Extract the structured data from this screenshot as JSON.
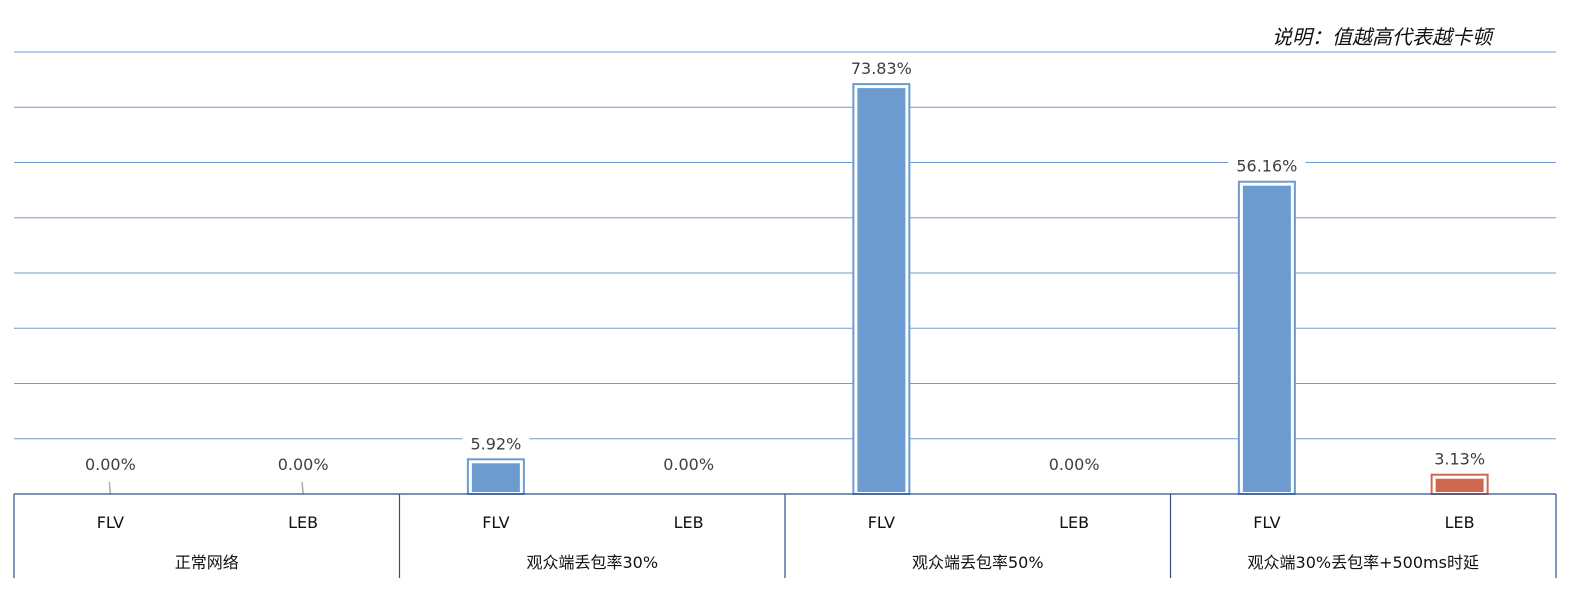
{
  "chart_data": {
    "type": "bar",
    "note": "说明：值越高代表越卡顿",
    "groups": [
      "正常网络",
      "观众端丢包率30%",
      "观众端丢包率50%",
      "观众端30%丢包率+500ms时延"
    ],
    "categories": [
      "FLV",
      "LEB"
    ],
    "values": [
      [
        0.0,
        0.0
      ],
      [
        5.92,
        0.0
      ],
      [
        73.83,
        0.0
      ],
      [
        56.16,
        3.13
      ]
    ],
    "labels": [
      [
        "0.00%",
        "0.00%"
      ],
      [
        "5.92%",
        "0.00%"
      ],
      [
        "73.83%",
        "0.00%"
      ],
      [
        "56.16%",
        "3.13%"
      ]
    ],
    "ylim": [
      0,
      80
    ],
    "grid_step": 10,
    "grid": true,
    "colors": {
      "bar": "#6B9BD1",
      "highlight": "#D0684F",
      "grid": "#6E9BD3",
      "axis": "#2F4F8A"
    },
    "highlight_bar": [
      3,
      1
    ]
  }
}
